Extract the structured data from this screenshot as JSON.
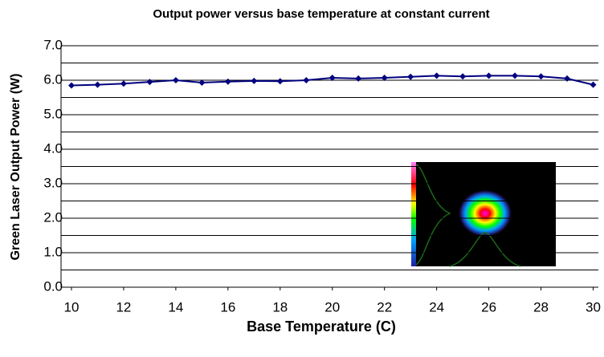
{
  "chart_data": {
    "type": "line",
    "title": "Output power versus base temperature at constant current",
    "x_label": "Base Temperature (C)",
    "y_label": "Green Laser Output Power (W)",
    "x": [
      10,
      11,
      12,
      13,
      14,
      15,
      16,
      17,
      18,
      19,
      20,
      21,
      22,
      23,
      24,
      25,
      26,
      27,
      28,
      29,
      30
    ],
    "series": [
      {
        "color": "#000080",
        "values": [
          5.85,
          5.87,
          5.9,
          5.95,
          6.0,
          5.93,
          5.96,
          5.98,
          5.97,
          6.0,
          6.07,
          6.05,
          6.07,
          6.1,
          6.13,
          6.11,
          6.13,
          6.13,
          6.11,
          6.05,
          5.87
        ]
      }
    ],
    "xlim": [
      9.6,
      30.2
    ],
    "xticks": [
      10,
      12,
      14,
      16,
      18,
      20,
      22,
      24,
      26,
      28,
      30
    ],
    "ylim": [
      0,
      7
    ],
    "yticks": [
      {
        "value": 0,
        "label": "0.0"
      },
      {
        "value": 1,
        "label": "1.0"
      },
      {
        "value": 2,
        "label": "2.0"
      },
      {
        "value": 3,
        "label": "3.0"
      },
      {
        "value": 4,
        "label": "4.0"
      },
      {
        "value": 5,
        "label": "5.0"
      },
      {
        "value": 6,
        "label": "6.0"
      },
      {
        "value": 7,
        "label": "7.0"
      }
    ],
    "minor_yticks": [
      0.5,
      1.5,
      2.5,
      3.5,
      4.5,
      5.5,
      6.5
    ],
    "grid": true
  }
}
